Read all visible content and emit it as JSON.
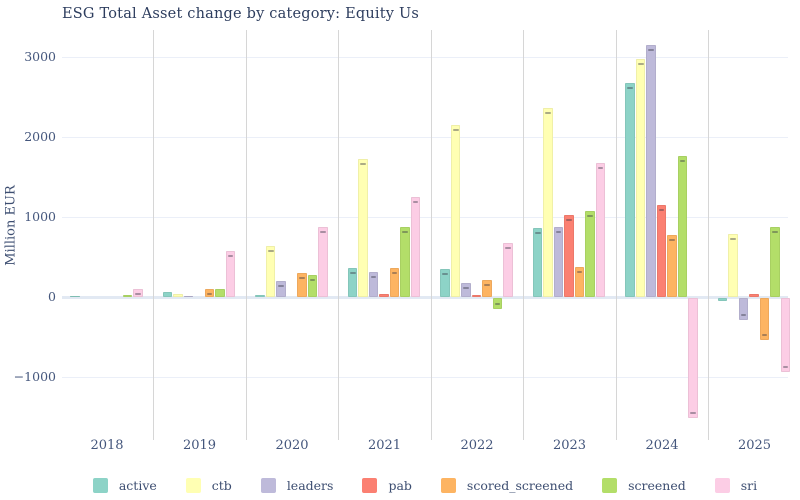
{
  "title": "ESG Total Asset change by category: Equity Us",
  "y_axis_title": "Million EUR",
  "chart_data": {
    "type": "bar",
    "title": "ESG Total Asset change by category: Equity Us",
    "xlabel": "",
    "ylabel": "Million EUR",
    "categories": [
      "2018",
      "2019",
      "2020",
      "2021",
      "2022",
      "2023",
      "2024",
      "2025"
    ],
    "series": [
      {
        "name": "active",
        "color": "#8dd3c7",
        "values": [
          10,
          65,
          30,
          365,
          345,
          865,
          2680,
          -40
        ]
      },
      {
        "name": "ctb",
        "color": "#ffffb3",
        "values": [
          0,
          35,
          640,
          1720,
          2150,
          2360,
          2980,
          790
        ]
      },
      {
        "name": "leaders",
        "color": "#bebada",
        "values": [
          0,
          15,
          200,
          315,
          170,
          875,
          3155,
          -280
        ]
      },
      {
        "name": "pab",
        "color": "#fb8072",
        "values": [
          0,
          5,
          5,
          40,
          20,
          1030,
          1150,
          35
        ]
      },
      {
        "name": "scored_screened",
        "color": "#fdb462",
        "values": [
          0,
          105,
          300,
          365,
          210,
          370,
          780,
          -530
        ]
      },
      {
        "name": "screened",
        "color": "#b3de69",
        "values": [
          30,
          95,
          275,
          870,
          -140,
          1080,
          1760,
          880
        ]
      },
      {
        "name": "sri",
        "color": "#fccde5",
        "values": [
          100,
          580,
          870,
          1250,
          680,
          1680,
          -1500,
          -930
        ]
      }
    ],
    "yticks": [
      3000,
      2000,
      1000,
      0,
      -1000
    ],
    "ylim": [
      -1600,
      3350
    ],
    "grid": true,
    "legend_position": "bottom"
  }
}
